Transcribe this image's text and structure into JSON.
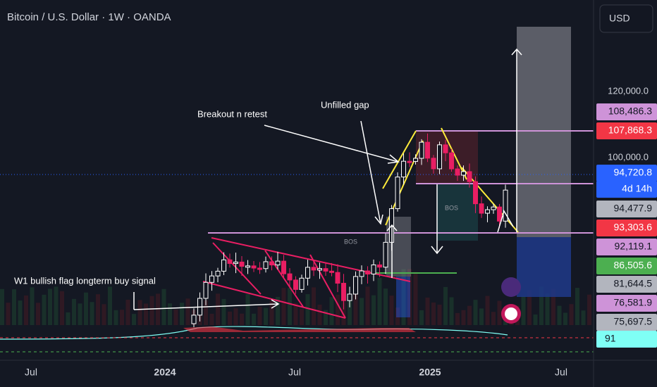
{
  "header": {
    "title": "Bitcoin / U.S. Dollar · 1W · OANDA",
    "currency": "USD"
  },
  "price_scale": {
    "ticks": [
      "120,000.0",
      "100,000.0"
    ],
    "tags": [
      {
        "text": "108,486.3",
        "color": "#ce93d8"
      },
      {
        "text": "107,868.3",
        "color": "#f23645"
      },
      {
        "text": "94,720.8",
        "color": "#2962ff"
      },
      {
        "text": "4d 14h",
        "color": "#2962ff"
      },
      {
        "text": "94,477.9",
        "color": "#b2b5be"
      },
      {
        "text": "93,303.6",
        "color": "#f23645"
      },
      {
        "text": "92,119.1",
        "color": "#ce93d8"
      },
      {
        "text": "86,505.6",
        "color": "#4caf50"
      },
      {
        "text": "81,644.5",
        "color": "#b2b5be"
      },
      {
        "text": "76,581.9",
        "color": "#ce93d8"
      },
      {
        "text": "75,697.5",
        "color": "#b2b5be"
      },
      {
        "text": "91",
        "color": "#7ffff5"
      }
    ]
  },
  "time_axis": [
    "Jul",
    "2024",
    "Jul",
    "2025",
    "Jul"
  ],
  "annotations": {
    "breakout": "Breakout n retest",
    "gap": "Unfilled gap",
    "flag": "W1 bullish flag longterm buy signal",
    "bos1": "BOS",
    "bos2": "BOS"
  }
}
